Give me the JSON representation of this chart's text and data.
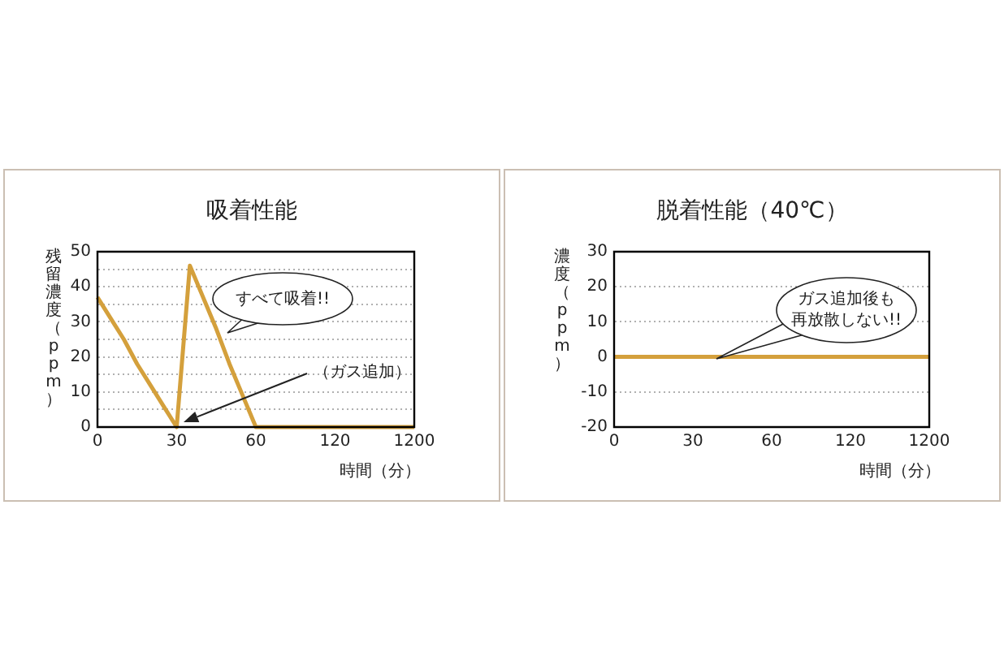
{
  "chart_data": [
    {
      "type": "line",
      "title": "吸着性能",
      "xlabel": "時間（分）",
      "ylabel": "残留濃度（ppm）",
      "categories": [
        "0",
        null,
        null,
        null,
        null,
        null,
        "30",
        null,
        null,
        null,
        null,
        null,
        "60",
        null,
        null,
        null,
        null,
        null,
        "120",
        null,
        null,
        null,
        null,
        null,
        "1200"
      ],
      "series": [
        {
          "color": "#d4a03c",
          "values": [
            37,
            31,
            25,
            18,
            12,
            6,
            0,
            46,
            37,
            28,
            18,
            9,
            0,
            0,
            0,
            0,
            0,
            0,
            0,
            0,
            0,
            0,
            0,
            0,
            0
          ]
        }
      ],
      "ylim": [
        0,
        50
      ],
      "yticks": [
        0,
        {
          "value": 5,
          "label": null
        },
        10,
        {
          "value": 15,
          "label": null
        },
        20,
        {
          "value": 25,
          "label": null
        },
        30,
        {
          "value": 35,
          "label": null
        },
        40,
        {
          "value": 45,
          "label": null
        },
        50
      ],
      "grid": "y",
      "legend": false,
      "marker": "none",
      "line_style": "solid",
      "annotations": [
        "すべて吸着!!",
        "（ガス追加）"
      ]
    },
    {
      "type": "line",
      "title": "脱着性能（40℃）",
      "xlabel": "時間（分）",
      "ylabel": "濃度（ppm）",
      "categories": [
        "0",
        "30",
        "60",
        "120",
        "1200"
      ],
      "series": [
        {
          "color": "#d4a03c",
          "values": [
            0,
            0,
            0,
            0,
            0
          ]
        }
      ],
      "ylim": [
        -20,
        30
      ],
      "yticks": [
        -20,
        -10,
        0,
        10,
        20,
        30
      ],
      "grid": "y",
      "legend": false,
      "marker": "none",
      "line_style": "solid",
      "annotations": [
        "ガス追加後も再放散しない!!"
      ]
    }
  ]
}
